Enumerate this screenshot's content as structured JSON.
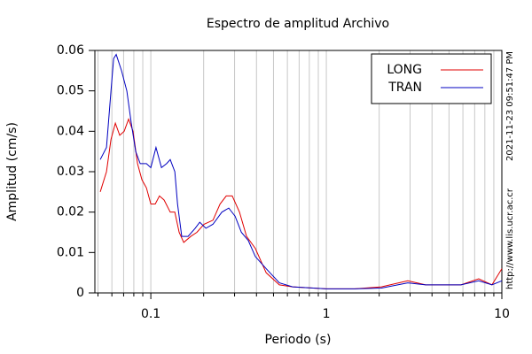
{
  "chart_data": {
    "type": "line",
    "title": "Espectro de amplitud Archivo",
    "xlabel": "Periodo (s)",
    "ylabel": "Amplitud (cm/s)",
    "side_texts": [
      "2021-11-23 09:51:47 PM",
      "http://www.lis.ucr.ac.cr"
    ],
    "xscale": "log",
    "xlim": [
      0.048,
      10
    ],
    "ylim": [
      0,
      0.06
    ],
    "xticks": [
      0.1,
      1,
      10
    ],
    "xminorticks": [
      0.05,
      0.06,
      0.07,
      0.08,
      0.09,
      0.2,
      0.3,
      0.4,
      0.5,
      0.6,
      0.7,
      0.8,
      0.9,
      2,
      3,
      4,
      5,
      6,
      7,
      8,
      9
    ],
    "yticks": [
      0,
      0.01,
      0.02,
      0.03,
      0.04,
      0.05,
      0.06
    ],
    "grid": true,
    "legend": "upper right",
    "series": [
      {
        "name": "LONG",
        "color": "#e00000",
        "x": [
          0.0515,
          0.0559,
          0.0593,
          0.0628,
          0.0665,
          0.0705,
          0.0747,
          0.0792,
          0.084,
          0.089,
          0.0944,
          0.1,
          0.106,
          0.112,
          0.119,
          0.129,
          0.137,
          0.145,
          0.154,
          0.169,
          0.183,
          0.201,
          0.226,
          0.248,
          0.269,
          0.291,
          0.32,
          0.351,
          0.394,
          0.454,
          0.54,
          0.642,
          1,
          1.45,
          2.06,
          2.91,
          3.68,
          5.85,
          7.38,
          8.78,
          10
        ],
        "values": [
          0.025,
          0.03,
          0.038,
          0.042,
          0.039,
          0.04,
          0.043,
          0.04,
          0.032,
          0.028,
          0.026,
          0.022,
          0.022,
          0.024,
          0.023,
          0.02,
          0.02,
          0.015,
          0.0125,
          0.014,
          0.015,
          0.017,
          0.018,
          0.022,
          0.024,
          0.024,
          0.02,
          0.014,
          0.011,
          0.005,
          0.002,
          0.0015,
          0.001,
          0.001,
          0.0015,
          0.003,
          0.002,
          0.002,
          0.0035,
          0.002,
          0.006
        ]
      },
      {
        "name": "TRAN",
        "color": "#0000c0",
        "x": [
          0.0515,
          0.0559,
          0.0593,
          0.0614,
          0.0635,
          0.0681,
          0.073,
          0.0774,
          0.082,
          0.087,
          0.0944,
          0.1,
          0.107,
          0.115,
          0.123,
          0.129,
          0.137,
          0.142,
          0.15,
          0.163,
          0.179,
          0.19,
          0.206,
          0.226,
          0.254,
          0.278,
          0.302,
          0.328,
          0.359,
          0.394,
          0.454,
          0.54,
          0.642,
          1,
          1.45,
          2.06,
          2.91,
          3.68,
          5.85,
          7.38,
          8.78,
          10
        ],
        "values": [
          0.033,
          0.036,
          0.05,
          0.058,
          0.059,
          0.055,
          0.05,
          0.042,
          0.035,
          0.032,
          0.032,
          0.031,
          0.036,
          0.031,
          0.032,
          0.033,
          0.03,
          0.022,
          0.014,
          0.014,
          0.016,
          0.0175,
          0.016,
          0.017,
          0.02,
          0.021,
          0.019,
          0.015,
          0.013,
          0.009,
          0.006,
          0.0025,
          0.0015,
          0.001,
          0.001,
          0.0012,
          0.0025,
          0.002,
          0.002,
          0.003,
          0.002,
          0.003
        ]
      }
    ]
  }
}
